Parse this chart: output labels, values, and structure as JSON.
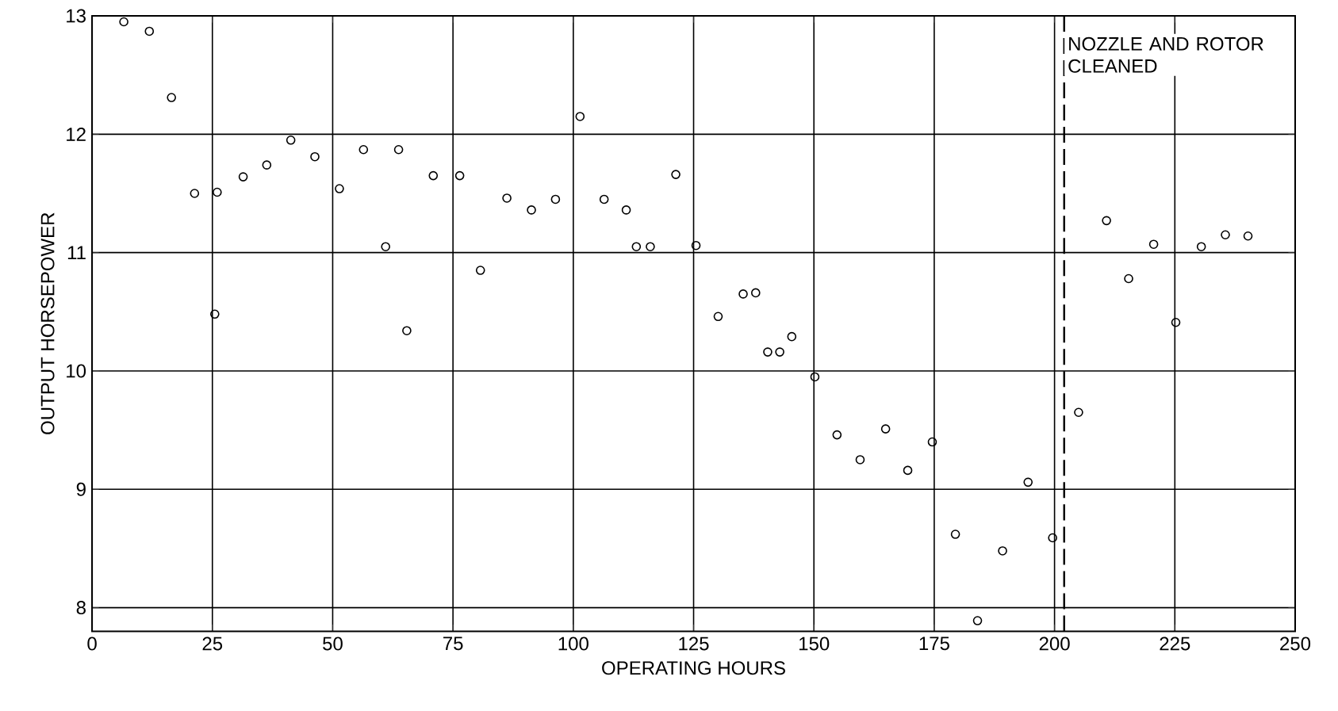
{
  "chart_data": {
    "type": "scatter",
    "xlabel": "OPERATING HOURS",
    "ylabel": "OUTPUT HORSEPOWER",
    "x": [
      6.6,
      11.9,
      16.5,
      21.3,
      25.5,
      26,
      31.4,
      36.3,
      41.3,
      46.3,
      51.4,
      56.4,
      61,
      63.7,
      65.4,
      70.9,
      76.4,
      80.7,
      86.2,
      91.3,
      96.3,
      101.4,
      106.4,
      111,
      113.1,
      116,
      121.3,
      125.5,
      130.1,
      135.3,
      137.9,
      140.4,
      142.9,
      145.4,
      150.2,
      154.8,
      159.6,
      164.9,
      169.5,
      174.6,
      179.4,
      184,
      189.2,
      194.5,
      199.6,
      205,
      210.8,
      215.4,
      220.6,
      225.2,
      230.5,
      235.5,
      240.2
    ],
    "values": [
      12.95,
      12.87,
      12.31,
      11.5,
      10.48,
      11.51,
      11.64,
      11.74,
      11.95,
      11.81,
      11.54,
      11.87,
      11.05,
      11.87,
      10.34,
      11.65,
      11.65,
      10.85,
      11.46,
      11.36,
      11.45,
      12.15,
      11.45,
      11.36,
      11.05,
      11.05,
      11.66,
      11.06,
      10.46,
      10.65,
      10.66,
      10.16,
      10.16,
      10.29,
      9.95,
      9.46,
      9.25,
      9.51,
      9.16,
      9.4,
      8.62,
      7.89,
      8.48,
      9.06,
      8.59,
      9.65,
      11.27,
      10.78,
      11.07,
      10.41,
      11.05,
      11.15,
      11.14
    ],
    "color": "#000000",
    "marker": "circle",
    "xlim": [
      0,
      250
    ],
    "ylim": [
      7.8,
      13
    ],
    "xticks": [
      0,
      25,
      50,
      75,
      100,
      125,
      150,
      175,
      200,
      225,
      250
    ],
    "yticks": [
      8,
      9,
      10,
      11,
      12,
      13
    ],
    "grid": true,
    "ref_lines": [
      {
        "axis": "x",
        "value": 202,
        "label": "NOZZLE AND ROTOR CLEANED",
        "line_style": "dashed"
      }
    ]
  }
}
